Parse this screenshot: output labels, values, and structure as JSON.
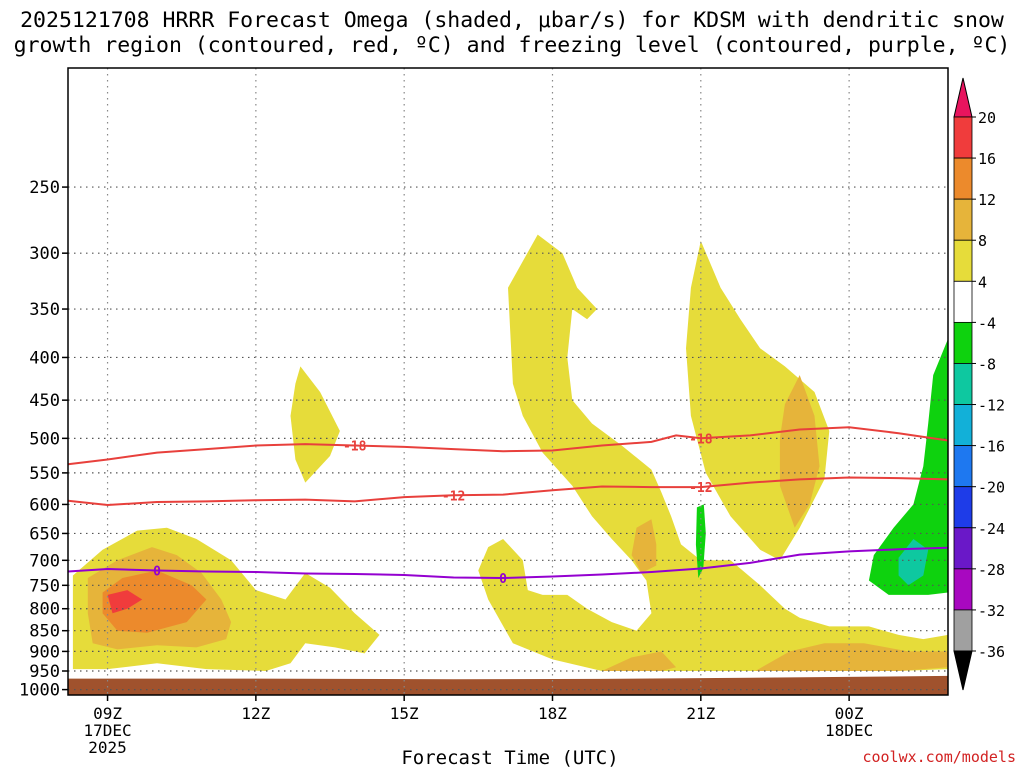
{
  "title": {
    "line1": "2025121708 HRRR Forecast Omega (shaded, μbar/s) for KDSM with dendritic snow",
    "line2": "growth region (contoured, red, ºC) and freezing level (contoured, purple, ºC)"
  },
  "credit": "coolwx.com/models",
  "chart_data": {
    "type": "heatmap",
    "title": "2025121708 HRRR Forecast Omega (shaded, μbar/s) for KDSM with dendritic snow growth region (contoured, red, ºC) and freezing level (contoured, purple, ºC)",
    "xlabel": "Forecast Time (UTC)",
    "ylabel": "",
    "xlim": [
      8.2,
      26.0
    ],
    "ylim": [
      1015,
      180
    ],
    "y_scale": "log-pressure",
    "grid": true,
    "y_ticks": [
      250,
      300,
      350,
      400,
      450,
      500,
      550,
      600,
      650,
      700,
      750,
      800,
      850,
      900,
      950,
      1000
    ],
    "x_ticks": [
      {
        "hour": 9,
        "lines": [
          "09Z",
          "17DEC",
          "2025"
        ]
      },
      {
        "hour": 12,
        "lines": [
          "12Z"
        ]
      },
      {
        "hour": 15,
        "lines": [
          "15Z"
        ]
      },
      {
        "hour": 18,
        "lines": [
          "18Z"
        ]
      },
      {
        "hour": 21,
        "lines": [
          "21Z"
        ]
      },
      {
        "hour": 24,
        "lines": [
          "00Z",
          "18DEC"
        ]
      }
    ],
    "colorbar": {
      "labels": [
        "20",
        "16",
        "12",
        "8",
        "4",
        "-4",
        "-8",
        "-12",
        "-16",
        "-20",
        "-24",
        "-28",
        "-32",
        "-36"
      ],
      "colors": [
        "#e8145e",
        "#f03c3c",
        "#ec8a2c",
        "#e6b43a",
        "#e6dc3a",
        "#ffffff",
        "#0ed20e",
        "#0ec8a0",
        "#12b0d8",
        "#1e78f0",
        "#1e3ce8",
        "#6a18c8",
        "#a808c0",
        "#a0a0a0",
        "#000000"
      ]
    },
    "surface_color": "#a0522d",
    "omega_fill_colors": {
      "4": "#e6dc3a",
      "8": "#e6b43a",
      "12": "#ec8a2c",
      "16": "#f03c3c",
      "-4": "#0ed20e",
      "-8": "#0ec8a0"
    },
    "omega_regions": [
      {
        "level": 4,
        "points": [
          [
            8.3,
            730
          ],
          [
            8.9,
            680
          ],
          [
            9.6,
            645
          ],
          [
            10.2,
            640
          ],
          [
            10.8,
            660
          ],
          [
            11.5,
            700
          ],
          [
            12.0,
            760
          ],
          [
            12.6,
            780
          ],
          [
            13.0,
            725
          ],
          [
            13.5,
            755
          ],
          [
            14.0,
            810
          ],
          [
            14.5,
            860
          ],
          [
            14.2,
            905
          ],
          [
            13.6,
            890
          ],
          [
            13.0,
            880
          ],
          [
            12.7,
            930
          ],
          [
            12.2,
            950
          ],
          [
            11.0,
            945
          ],
          [
            10.0,
            930
          ],
          [
            9.0,
            945
          ],
          [
            8.3,
            945
          ]
        ]
      },
      {
        "level": 4,
        "points": [
          [
            12.9,
            410
          ],
          [
            13.3,
            440
          ],
          [
            13.7,
            490
          ],
          [
            13.5,
            525
          ],
          [
            13.0,
            565
          ],
          [
            12.8,
            530
          ],
          [
            12.7,
            470
          ],
          [
            12.8,
            430
          ]
        ]
      },
      {
        "level": 4,
        "points": [
          [
            17.1,
            330
          ],
          [
            17.7,
            285
          ],
          [
            18.2,
            300
          ],
          [
            18.5,
            330
          ],
          [
            18.9,
            350
          ],
          [
            18.7,
            360
          ],
          [
            18.4,
            350
          ],
          [
            18.3,
            400
          ],
          [
            18.4,
            450
          ],
          [
            18.8,
            480
          ],
          [
            19.4,
            510
          ],
          [
            20.0,
            545
          ],
          [
            20.2,
            580
          ],
          [
            20.4,
            620
          ],
          [
            20.6,
            670
          ],
          [
            21.0,
            700
          ],
          [
            21.6,
            700
          ],
          [
            22.2,
            750
          ],
          [
            22.7,
            800
          ],
          [
            23.0,
            820
          ],
          [
            23.6,
            840
          ],
          [
            24.4,
            840
          ],
          [
            25.0,
            860
          ],
          [
            25.5,
            870
          ],
          [
            26.0,
            860
          ],
          [
            26.0,
            945
          ],
          [
            25.0,
            950
          ],
          [
            23.5,
            950
          ],
          [
            22.0,
            950
          ],
          [
            21.0,
            950
          ],
          [
            20.0,
            950
          ],
          [
            19.0,
            950
          ],
          [
            18.0,
            920
          ],
          [
            17.2,
            880
          ],
          [
            16.7,
            780
          ],
          [
            16.5,
            720
          ],
          [
            16.7,
            675
          ],
          [
            17.0,
            660
          ],
          [
            17.4,
            700
          ],
          [
            17.5,
            760
          ],
          [
            17.8,
            770
          ],
          [
            18.3,
            770
          ],
          [
            18.7,
            800
          ],
          [
            19.2,
            830
          ],
          [
            19.7,
            850
          ],
          [
            20.0,
            810
          ],
          [
            19.9,
            740
          ],
          [
            19.6,
            700
          ],
          [
            19.2,
            660
          ],
          [
            18.8,
            620
          ],
          [
            18.4,
            570
          ],
          [
            17.8,
            520
          ],
          [
            17.4,
            470
          ],
          [
            17.2,
            430
          ]
        ]
      },
      {
        "level": 4,
        "points": [
          [
            20.8,
            330
          ],
          [
            21.0,
            290
          ],
          [
            21.4,
            330
          ],
          [
            21.8,
            360
          ],
          [
            22.2,
            390
          ],
          [
            22.7,
            410
          ],
          [
            23.3,
            440
          ],
          [
            23.6,
            490
          ],
          [
            23.5,
            560
          ],
          [
            23.0,
            640
          ],
          [
            22.6,
            700
          ],
          [
            22.2,
            680
          ],
          [
            21.6,
            620
          ],
          [
            21.1,
            550
          ],
          [
            20.8,
            470
          ],
          [
            20.7,
            390
          ]
        ]
      },
      {
        "level": 8,
        "points": [
          [
            8.6,
            735
          ],
          [
            9.2,
            700
          ],
          [
            9.9,
            675
          ],
          [
            10.4,
            690
          ],
          [
            10.9,
            725
          ],
          [
            11.3,
            780
          ],
          [
            11.5,
            830
          ],
          [
            11.4,
            870
          ],
          [
            10.8,
            890
          ],
          [
            10.0,
            885
          ],
          [
            9.2,
            895
          ],
          [
            8.7,
            880
          ],
          [
            8.6,
            810
          ]
        ]
      },
      {
        "level": 8,
        "points": [
          [
            19.7,
            640
          ],
          [
            20.0,
            625
          ],
          [
            20.1,
            670
          ],
          [
            20.1,
            710
          ],
          [
            19.8,
            725
          ],
          [
            19.6,
            690
          ]
        ]
      },
      {
        "level": 8,
        "points": [
          [
            22.7,
            455
          ],
          [
            23.0,
            420
          ],
          [
            23.3,
            470
          ],
          [
            23.4,
            540
          ],
          [
            23.2,
            600
          ],
          [
            22.9,
            640
          ],
          [
            22.6,
            570
          ],
          [
            22.6,
            500
          ]
        ]
      },
      {
        "level": 8,
        "points": [
          [
            19.0,
            950
          ],
          [
            19.6,
            915
          ],
          [
            20.2,
            900
          ],
          [
            20.5,
            940
          ],
          [
            20.2,
            950
          ]
        ]
      },
      {
        "level": 8,
        "points": [
          [
            22.1,
            950
          ],
          [
            22.8,
            900
          ],
          [
            23.5,
            880
          ],
          [
            24.3,
            880
          ],
          [
            25.2,
            900
          ],
          [
            26.0,
            900
          ],
          [
            26.0,
            940
          ],
          [
            25.0,
            950
          ],
          [
            23.5,
            950
          ]
        ]
      },
      {
        "level": 12,
        "points": [
          [
            8.9,
            765
          ],
          [
            9.3,
            735
          ],
          [
            10.0,
            720
          ],
          [
            10.7,
            750
          ],
          [
            11.0,
            780
          ],
          [
            10.6,
            830
          ],
          [
            9.8,
            855
          ],
          [
            9.2,
            850
          ],
          [
            8.9,
            810
          ]
        ]
      },
      {
        "level": 16,
        "points": [
          [
            9.0,
            770
          ],
          [
            9.4,
            760
          ],
          [
            9.7,
            780
          ],
          [
            9.4,
            800
          ],
          [
            9.1,
            810
          ]
        ]
      },
      {
        "level": -4,
        "points": [
          [
            26.0,
            380
          ],
          [
            25.7,
            420
          ],
          [
            25.6,
            480
          ],
          [
            25.5,
            540
          ],
          [
            25.3,
            600
          ],
          [
            24.9,
            640
          ],
          [
            24.5,
            690
          ],
          [
            24.4,
            740
          ],
          [
            24.8,
            770
          ],
          [
            25.6,
            770
          ],
          [
            26.0,
            765
          ]
        ]
      },
      {
        "level": -4,
        "points": [
          [
            20.92,
            605
          ],
          [
            21.06,
            600
          ],
          [
            21.1,
            650
          ],
          [
            21.05,
            715
          ],
          [
            20.95,
            735
          ],
          [
            20.9,
            670
          ]
        ]
      },
      {
        "level": -8,
        "points": [
          [
            25.0,
            695
          ],
          [
            25.3,
            660
          ],
          [
            25.6,
            680
          ],
          [
            25.5,
            730
          ],
          [
            25.2,
            750
          ],
          [
            25.0,
            730
          ]
        ]
      }
    ],
    "isotherms": [
      {
        "temp_c": -18,
        "label": "-18",
        "color": "#e8403c",
        "label_at": [
          [
            14.0,
            510
          ],
          [
            21.0,
            500
          ]
        ],
        "points": [
          [
            8.2,
            537
          ],
          [
            9.0,
            530
          ],
          [
            10.0,
            520
          ],
          [
            11.0,
            515
          ],
          [
            12.0,
            510
          ],
          [
            13.0,
            508
          ],
          [
            14.0,
            510
          ],
          [
            15.0,
            512
          ],
          [
            16.0,
            515
          ],
          [
            17.0,
            518
          ],
          [
            18.0,
            517
          ],
          [
            19.0,
            510
          ],
          [
            20.0,
            505
          ],
          [
            20.5,
            496
          ],
          [
            21.0,
            500
          ],
          [
            22.0,
            496
          ],
          [
            23.0,
            488
          ],
          [
            24.0,
            485
          ],
          [
            25.0,
            493
          ],
          [
            26.0,
            503
          ]
        ]
      },
      {
        "temp_c": -12,
        "label": "-12",
        "color": "#e8403c",
        "label_at": [
          [
            16.0,
            585
          ],
          [
            21.0,
            572
          ]
        ],
        "points": [
          [
            8.2,
            594
          ],
          [
            9.0,
            601
          ],
          [
            10.0,
            596
          ],
          [
            11.0,
            595
          ],
          [
            12.0,
            593
          ],
          [
            13.0,
            592
          ],
          [
            14.0,
            595
          ],
          [
            15.0,
            588
          ],
          [
            16.0,
            585
          ],
          [
            17.0,
            584
          ],
          [
            18.0,
            577
          ],
          [
            19.0,
            571
          ],
          [
            20.0,
            572
          ],
          [
            21.0,
            572
          ],
          [
            22.0,
            565
          ],
          [
            23.0,
            560
          ],
          [
            24.0,
            557
          ],
          [
            25.0,
            558
          ],
          [
            26.0,
            560
          ]
        ]
      },
      {
        "temp_c": 0,
        "label": "0",
        "color": "#9400d0",
        "label_at": [
          [
            10.0,
            720
          ],
          [
            17.0,
            735
          ]
        ],
        "points": [
          [
            8.2,
            722
          ],
          [
            9.0,
            717
          ],
          [
            10.0,
            720
          ],
          [
            11.0,
            722
          ],
          [
            12.0,
            723
          ],
          [
            13.0,
            726
          ],
          [
            14.0,
            727
          ],
          [
            15.0,
            729
          ],
          [
            16.0,
            734
          ],
          [
            17.0,
            735
          ],
          [
            18.0,
            732
          ],
          [
            19.0,
            728
          ],
          [
            20.0,
            723
          ],
          [
            21.0,
            716
          ],
          [
            22.0,
            705
          ],
          [
            23.0,
            689
          ],
          [
            24.0,
            683
          ],
          [
            25.0,
            679
          ],
          [
            26.0,
            676
          ]
        ]
      }
    ],
    "surface_pressure": [
      [
        8.2,
        970
      ],
      [
        12.0,
        970
      ],
      [
        16.0,
        972
      ],
      [
        19.0,
        971
      ],
      [
        22.0,
        968
      ],
      [
        26.0,
        963
      ]
    ]
  }
}
